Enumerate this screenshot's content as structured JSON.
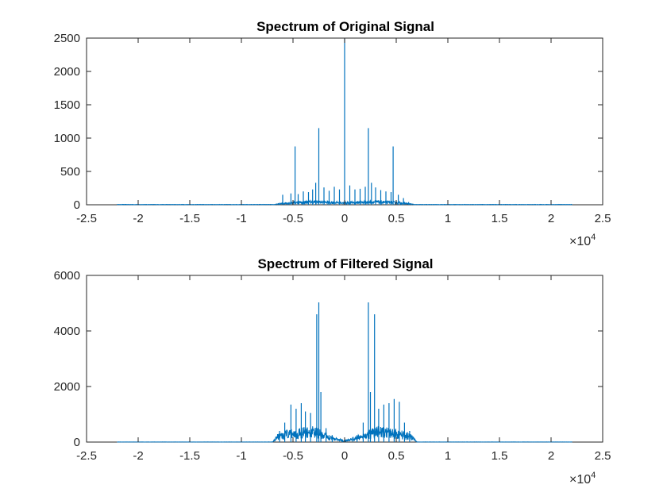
{
  "chart_data": [
    {
      "type": "line",
      "title": "Spectrum of Original Signal",
      "xlabel": "",
      "ylabel": "",
      "x_multiplier": {
        "base": "10",
        "exponent": "4"
      },
      "xlim": [
        -2.5,
        2.5
      ],
      "ylim": [
        0,
        2500
      ],
      "xticks": [
        -2.5,
        -2,
        -1.5,
        -1,
        -0.5,
        0,
        0.5,
        1,
        1.5,
        2,
        2.5
      ],
      "xtick_labels": [
        "-2.5",
        "-2",
        "-1.5",
        "-1",
        "-0.5",
        "0",
        "0.5",
        "1",
        "1.5",
        "2",
        "2.5"
      ],
      "yticks": [
        0,
        500,
        1000,
        1500,
        2000,
        2500
      ],
      "ytick_labels": [
        "0",
        "500",
        "1000",
        "1500",
        "2000",
        "2500"
      ],
      "grid": false,
      "color": "#0072BD",
      "data_range": [
        -2.205,
        2.205
      ],
      "base_envelope": {
        "x": [
          -0.68,
          -0.55,
          -0.3,
          0,
          0.3,
          0.55,
          0.68
        ],
        "y": [
          5,
          40,
          60,
          40,
          60,
          40,
          5
        ]
      },
      "peaks": [
        {
          "x": 0,
          "y": 2490
        },
        {
          "x": -0.25,
          "y": 1150
        },
        {
          "x": 0.23,
          "y": 1150
        },
        {
          "x": -0.48,
          "y": 875
        },
        {
          "x": 0.47,
          "y": 875
        },
        {
          "x": -0.28,
          "y": 330
        },
        {
          "x": 0.26,
          "y": 330
        },
        {
          "x": -0.6,
          "y": 150
        },
        {
          "x": -0.52,
          "y": 170
        },
        {
          "x": -0.45,
          "y": 160
        },
        {
          "x": -0.4,
          "y": 200
        },
        {
          "x": -0.35,
          "y": 190
        },
        {
          "x": -0.31,
          "y": 230
        },
        {
          "x": -0.2,
          "y": 260
        },
        {
          "x": -0.15,
          "y": 210
        },
        {
          "x": -0.1,
          "y": 270
        },
        {
          "x": -0.05,
          "y": 230
        },
        {
          "x": 0.05,
          "y": 290
        },
        {
          "x": 0.1,
          "y": 230
        },
        {
          "x": 0.15,
          "y": 240
        },
        {
          "x": 0.2,
          "y": 270
        },
        {
          "x": 0.3,
          "y": 260
        },
        {
          "x": 0.35,
          "y": 220
        },
        {
          "x": 0.4,
          "y": 200
        },
        {
          "x": 0.45,
          "y": 190
        },
        {
          "x": 0.52,
          "y": 150
        },
        {
          "x": 0.57,
          "y": 100
        },
        {
          "x": 0.62,
          "y": 40
        }
      ]
    },
    {
      "type": "line",
      "title": "Spectrum of Filtered Signal",
      "xlabel": "",
      "ylabel": "",
      "x_multiplier": {
        "base": "10",
        "exponent": "4"
      },
      "xlim": [
        -2.5,
        2.5
      ],
      "ylim": [
        0,
        6000
      ],
      "xticks": [
        -2.5,
        -2,
        -1.5,
        -1,
        -0.5,
        0,
        0.5,
        1,
        1.5,
        2,
        2.5
      ],
      "xtick_labels": [
        "-2.5",
        "-2",
        "-1.5",
        "-1",
        "-0.5",
        "0",
        "0.5",
        "1",
        "1.5",
        "2",
        "2.5"
      ],
      "yticks": [
        0,
        2000,
        4000,
        6000
      ],
      "ytick_labels": [
        "0",
        "2000",
        "4000",
        "6000"
      ],
      "grid": false,
      "color": "#0072BD",
      "data_range": [
        -2.205,
        2.205
      ],
      "base_envelope": {
        "x": [
          -0.7,
          -0.65,
          -0.55,
          -0.3,
          -0.08,
          0,
          0.08,
          0.3,
          0.55,
          0.65,
          0.7
        ],
        "y": [
          5,
          250,
          400,
          500,
          150,
          50,
          150,
          500,
          400,
          250,
          5
        ]
      },
      "peaks": [
        {
          "x": -0.25,
          "y": 5030
        },
        {
          "x": 0.23,
          "y": 5030
        },
        {
          "x": -0.27,
          "y": 4600
        },
        {
          "x": 0.29,
          "y": 4600
        },
        {
          "x": -0.23,
          "y": 1800
        },
        {
          "x": 0.25,
          "y": 1800
        },
        {
          "x": -0.52,
          "y": 1350
        },
        {
          "x": -0.47,
          "y": 1200
        },
        {
          "x": -0.42,
          "y": 1400
        },
        {
          "x": -0.38,
          "y": 1100
        },
        {
          "x": -0.33,
          "y": 1050
        },
        {
          "x": -0.58,
          "y": 700
        },
        {
          "x": -0.63,
          "y": 400
        },
        {
          "x": -0.18,
          "y": 500
        },
        {
          "x": -0.12,
          "y": 250
        },
        {
          "x": 0.12,
          "y": 250
        },
        {
          "x": 0.18,
          "y": 700
        },
        {
          "x": 0.33,
          "y": 1200
        },
        {
          "x": 0.38,
          "y": 1350
        },
        {
          "x": 0.43,
          "y": 1400
        },
        {
          "x": 0.48,
          "y": 1550
        },
        {
          "x": 0.53,
          "y": 1450
        },
        {
          "x": 0.58,
          "y": 700
        },
        {
          "x": 0.63,
          "y": 400
        }
      ]
    }
  ]
}
